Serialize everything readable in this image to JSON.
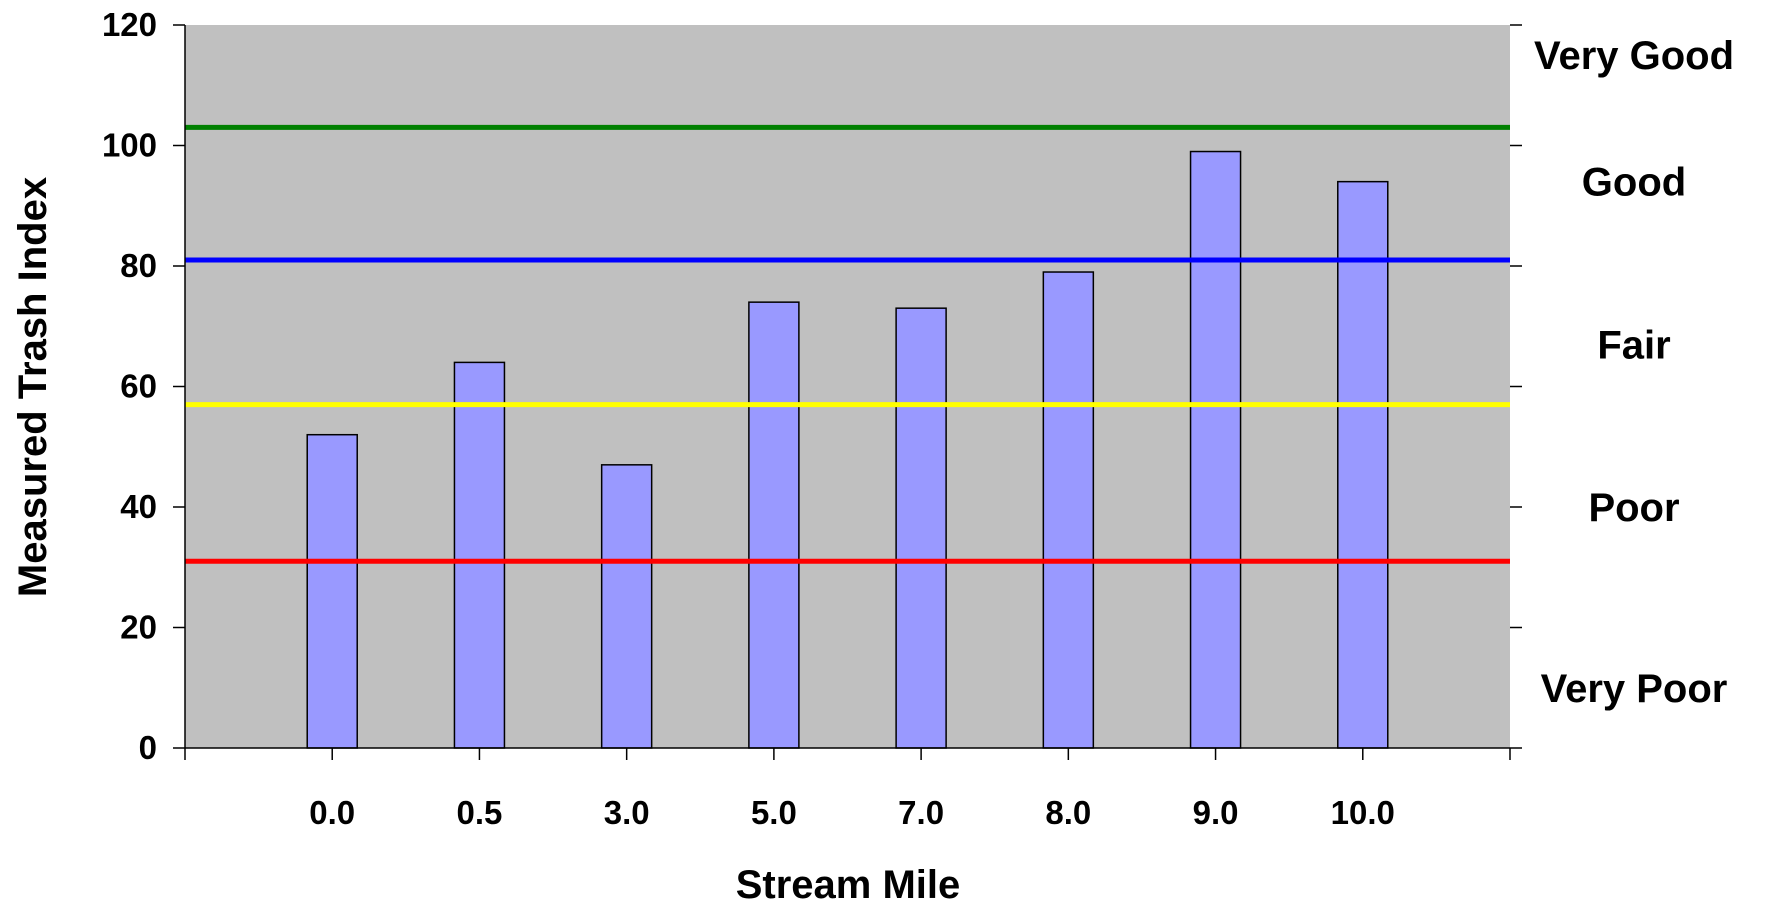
{
  "chart_data": {
    "type": "bar",
    "title": "",
    "xlabel": "Stream Mile",
    "ylabel": "Measured Trash Index",
    "categories": [
      "0.0",
      "0.5",
      "3.0",
      "5.0",
      "7.0",
      "8.0",
      "9.0",
      "10.0"
    ],
    "values": [
      52,
      64,
      47,
      74,
      73,
      79,
      99,
      94
    ],
    "ylim": [
      0,
      120
    ],
    "yticks": [
      "0",
      "20",
      "40",
      "60",
      "80",
      "100",
      "120"
    ],
    "grid": false,
    "colors": {
      "bar_fill": "#9999ff",
      "bar_stroke": "#000000",
      "plot_background": "#c0c0c0"
    },
    "threshold_lines": [
      {
        "value": 103,
        "color": "#008000"
      },
      {
        "value": 81,
        "color": "#0000ff"
      },
      {
        "value": 57,
        "color": "#ffff00"
      },
      {
        "value": 31,
        "color": "#ff0000"
      }
    ],
    "band_labels": [
      {
        "label": "Very Good",
        "value": 115
      },
      {
        "label": "Good",
        "value": 94
      },
      {
        "label": "Fair",
        "value": 67
      },
      {
        "label": "Poor",
        "value": 40
      },
      {
        "label": "Very Poor",
        "value": 10
      }
    ]
  }
}
